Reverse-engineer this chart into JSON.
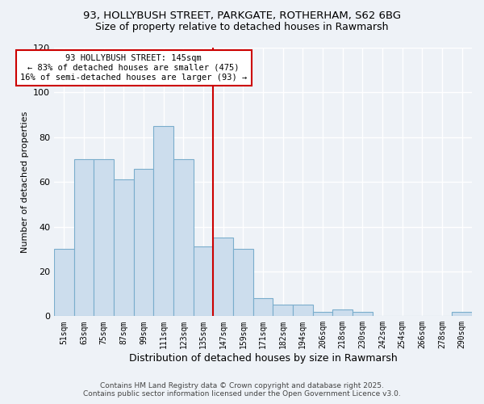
{
  "title1": "93, HOLLYBUSH STREET, PARKGATE, ROTHERHAM, S62 6BG",
  "title2": "Size of property relative to detached houses in Rawmarsh",
  "xlabel": "Distribution of detached houses by size in Rawmarsh",
  "ylabel": "Number of detached properties",
  "bar_labels": [
    "51sqm",
    "63sqm",
    "75sqm",
    "87sqm",
    "99sqm",
    "111sqm",
    "123sqm",
    "135sqm",
    "147sqm",
    "159sqm",
    "171sqm",
    "182sqm",
    "194sqm",
    "206sqm",
    "218sqm",
    "230sqm",
    "242sqm",
    "254sqm",
    "266sqm",
    "278sqm",
    "290sqm"
  ],
  "bar_values": [
    30,
    70,
    70,
    61,
    66,
    85,
    70,
    31,
    35,
    30,
    8,
    5,
    5,
    2,
    3,
    2,
    0,
    0,
    0,
    0,
    2
  ],
  "bar_color": "#ccdded",
  "bar_edge_color": "#7aadcc",
  "vline_color": "#cc0000",
  "annotation_title": "93 HOLLYBUSH STREET: 145sqm",
  "annotation_line1": "← 83% of detached houses are smaller (475)",
  "annotation_line2": "16% of semi-detached houses are larger (93) →",
  "annotation_box_color": "#ffffff",
  "annotation_box_edge": "#cc0000",
  "ylim": [
    0,
    120
  ],
  "yticks": [
    0,
    20,
    40,
    60,
    80,
    100,
    120
  ],
  "footer1": "Contains HM Land Registry data © Crown copyright and database right 2025.",
  "footer2": "Contains public sector information licensed under the Open Government Licence v3.0.",
  "bg_color": "#eef2f7"
}
